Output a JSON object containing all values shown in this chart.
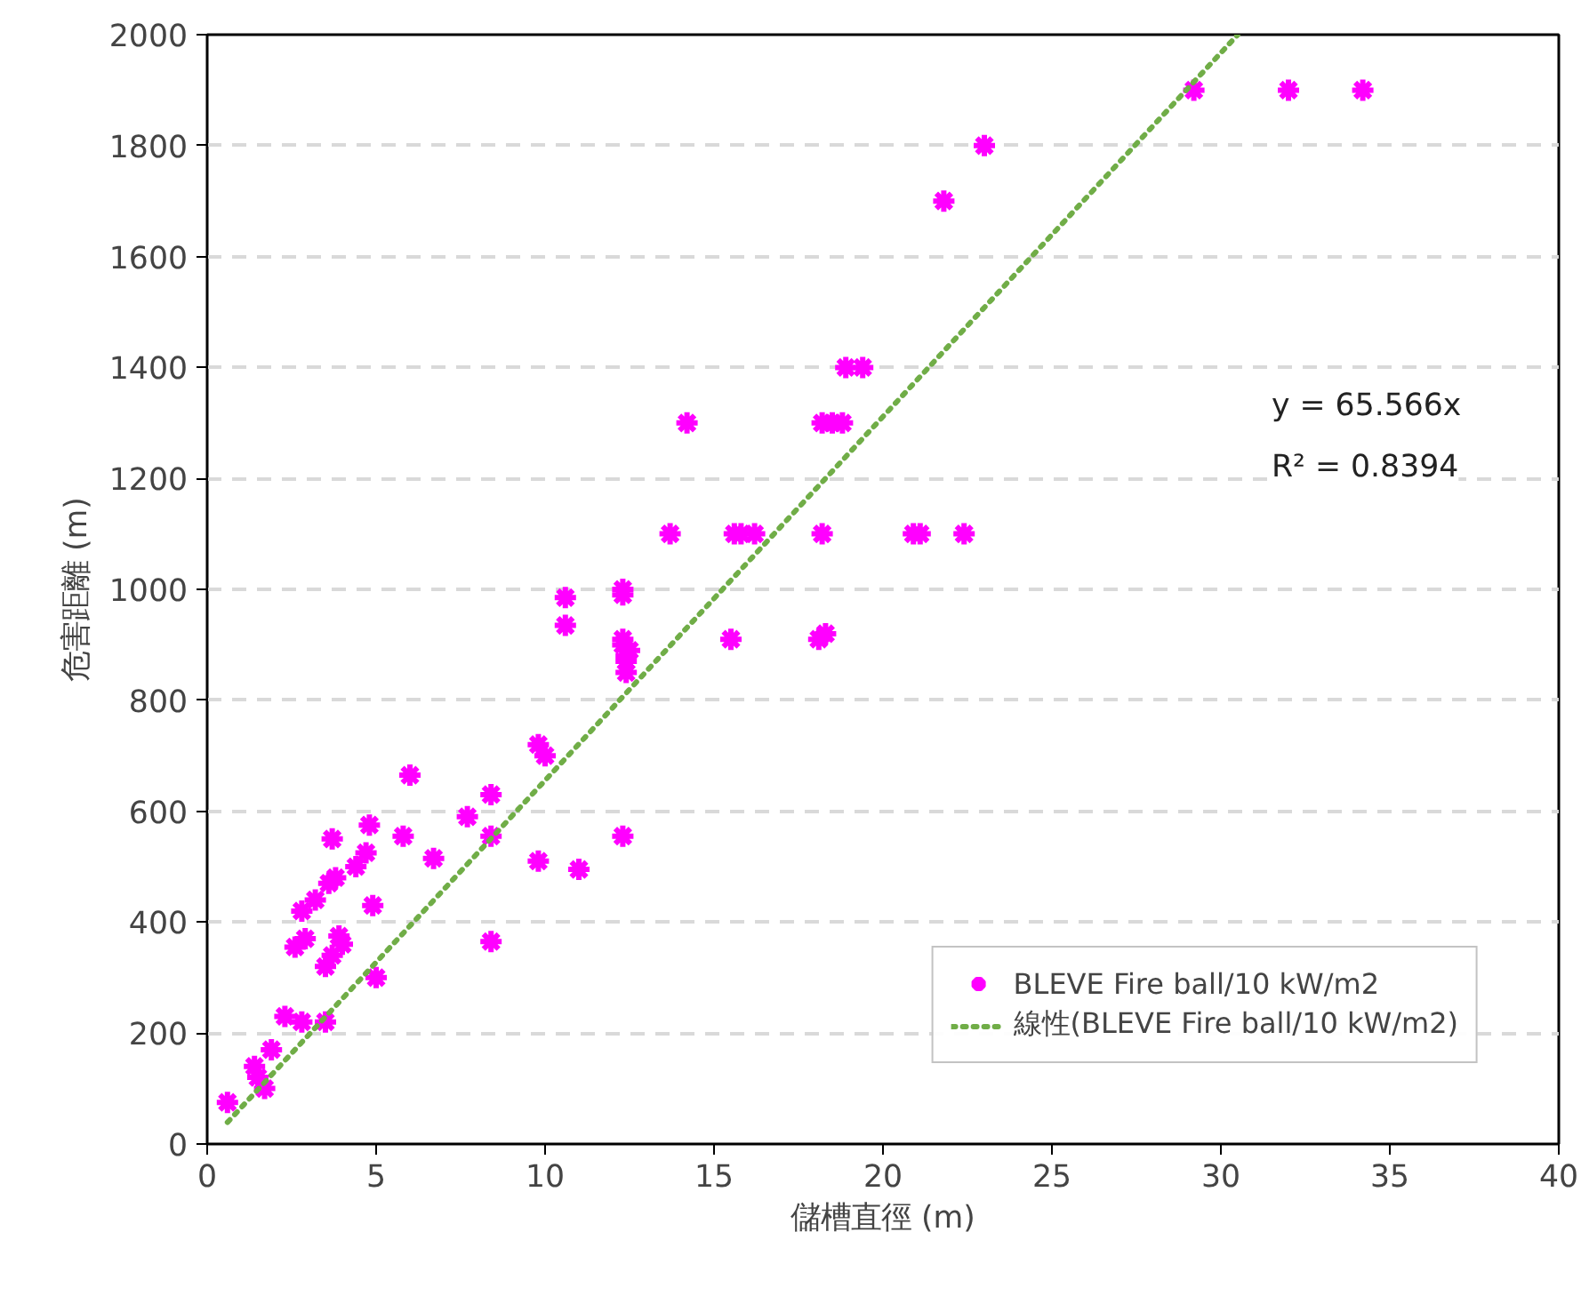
{
  "chart_data": {
    "type": "scatter",
    "xlabel": "儲槽直徑 (m)",
    "ylabel": "危害距離 (m)",
    "xlim": [
      0,
      40
    ],
    "xticks": [
      0,
      5,
      10,
      15,
      20,
      25,
      30,
      35,
      40
    ],
    "ylim": [
      0,
      2000
    ],
    "yticks": [
      0,
      200,
      400,
      600,
      800,
      1000,
      1200,
      1400,
      1600,
      1800,
      2000
    ],
    "grid": "y",
    "legend": "bottom right",
    "marker": "cross",
    "annotations": [
      "y = 65.566x",
      "R² = 0.8394"
    ],
    "series": [
      {
        "name": "BLEVE Fire ball/10 kW/m2",
        "color": "#ff00ff",
        "x": [
          0.6,
          1.4,
          1.5,
          1.7,
          1.9,
          2.3,
          2.6,
          2.8,
          2.8,
          2.9,
          3.2,
          3.5,
          3.5,
          3.6,
          3.7,
          3.8,
          3.7,
          3.9,
          4.0,
          4.4,
          4.7,
          4.8,
          4.9,
          5.0,
          5.8,
          6.0,
          6.7,
          7.7,
          8.4,
          8.4,
          8.4,
          9.8,
          9.8,
          10.0,
          10.6,
          10.6,
          11.0,
          12.3,
          12.3,
          12.3,
          12.3,
          12.4,
          12.4,
          12.4,
          12.5,
          12.3,
          13.7,
          14.2,
          15.5,
          15.6,
          15.8,
          16.2,
          18.1,
          18.2,
          18.2,
          18.3,
          18.5,
          18.8,
          18.9,
          19.4,
          20.9,
          21.1,
          21.8,
          22.4,
          23.0,
          29.2,
          32.0,
          34.2
        ],
        "values": [
          75,
          140,
          120,
          100,
          170,
          230,
          355,
          420,
          220,
          370,
          440,
          320,
          220,
          470,
          340,
          480,
          550,
          375,
          360,
          500,
          525,
          575,
          430,
          300,
          555,
          665,
          515,
          590,
          555,
          630,
          365,
          720,
          510,
          700,
          985,
          935,
          495,
          1000,
          990,
          910,
          900,
          880,
          870,
          850,
          890,
          555,
          1100,
          1300,
          910,
          1100,
          1100,
          1100,
          910,
          1100,
          1300,
          920,
          1300,
          1300,
          1400,
          1400,
          1100,
          1100,
          1700,
          1100,
          1800,
          1900,
          1900,
          1900
        ]
      },
      {
        "name": "線性(BLEVE Fire ball/10 kW/m2)",
        "color": "#70ad47",
        "type": "line",
        "line_style": "dotted",
        "marker": "none",
        "x": [
          0.6,
          30.5
        ],
        "values": [
          39,
          2000
        ]
      }
    ]
  }
}
